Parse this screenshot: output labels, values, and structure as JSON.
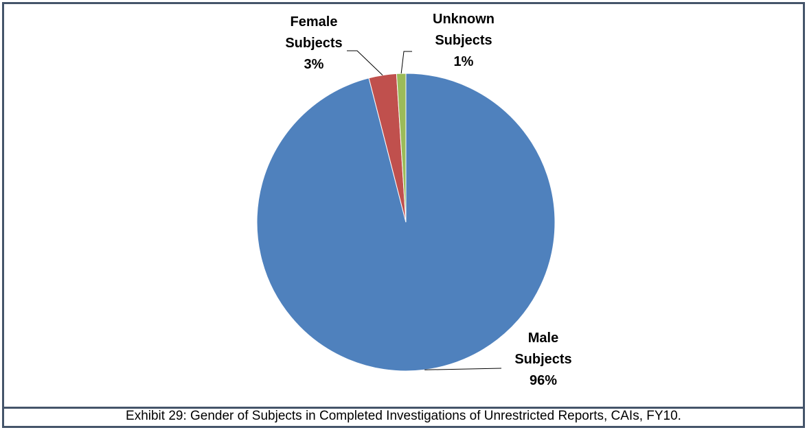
{
  "chart_data": {
    "type": "pie",
    "categories": [
      "Male Subjects",
      "Female Subjects",
      "Unknown Subjects"
    ],
    "values": [
      96,
      3,
      1
    ],
    "value_labels": [
      "96%",
      "3%",
      "1%"
    ],
    "colors": [
      "#4f81bd",
      "#c0504d",
      "#9bbb59"
    ],
    "caption": "Exhibit 29: Gender of Subjects in Completed Investigations of Unrestricted Reports, CAIs, FY10."
  }
}
